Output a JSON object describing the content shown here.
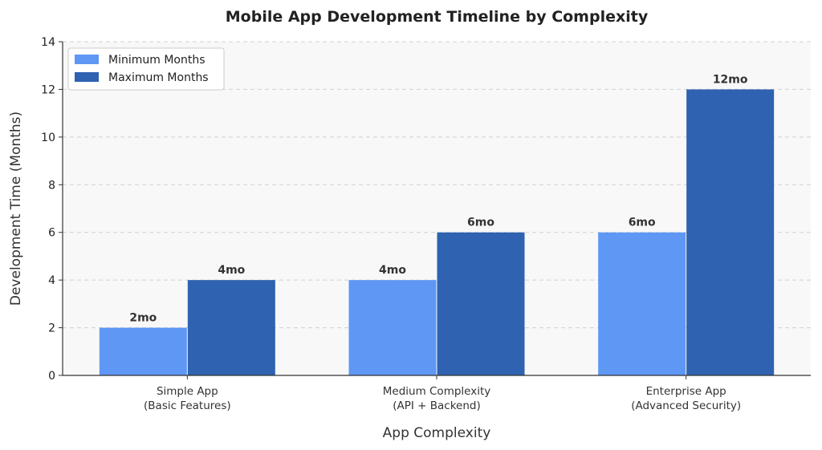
{
  "chart_data": {
    "type": "bar",
    "title": "Mobile App Development Timeline by Complexity",
    "xlabel": "App Complexity",
    "ylabel": "Development Time (Months)",
    "categories": [
      [
        "Simple App",
        "(Basic Features)"
      ],
      [
        "Medium Complexity",
        "(API + Backend)"
      ],
      [
        "Enterprise App",
        "(Advanced Security)"
      ]
    ],
    "series": [
      {
        "name": "Minimum Months",
        "values": [
          2,
          4,
          6
        ],
        "labels": [
          "2mo",
          "4mo",
          "6mo"
        ],
        "color": "#5f97f5"
      },
      {
        "name": "Maximum Months",
        "values": [
          4,
          6,
          12
        ],
        "labels": [
          "4mo",
          "6mo",
          "12mo"
        ],
        "color": "#2f62b0"
      }
    ],
    "ylim": [
      0,
      14
    ],
    "yticks": [
      0,
      2,
      4,
      6,
      8,
      10,
      12,
      14
    ],
    "grid": true,
    "legend_position": "top-left",
    "colors": {
      "plot_background": "#f8f8f8",
      "grid": "#d0d0d0",
      "axis": "#333333"
    }
  }
}
